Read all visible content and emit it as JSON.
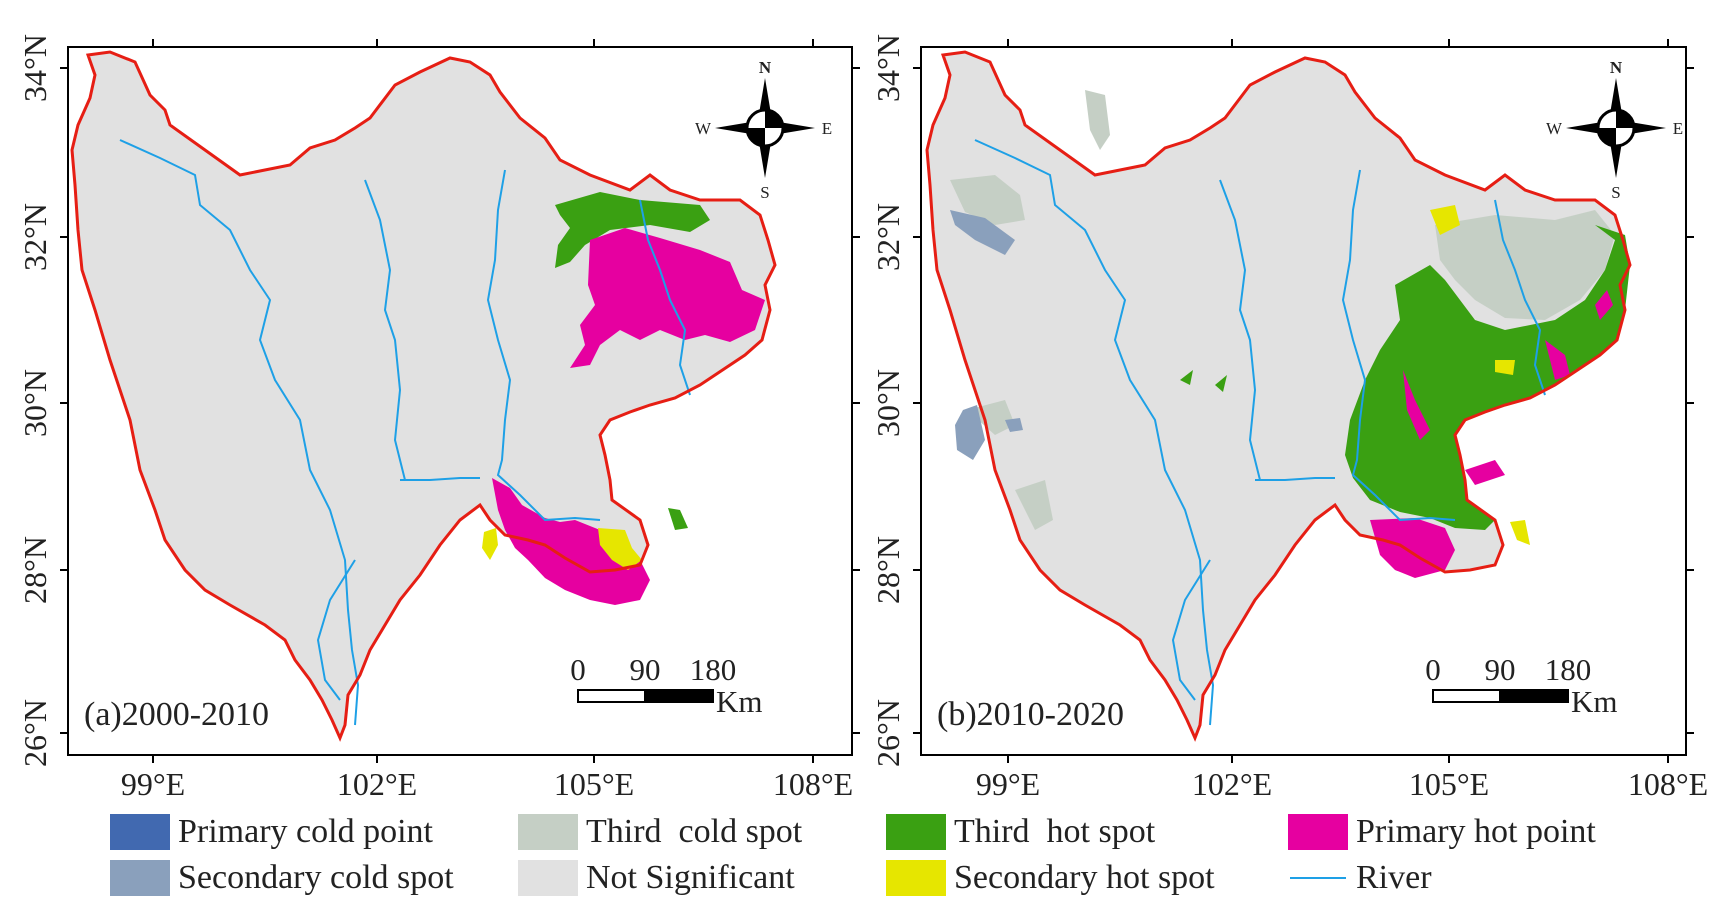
{
  "colors": {
    "primary_cold": "#4169b0",
    "secondary_cold": "#8aa0bc",
    "third_cold": "#c5cfc5",
    "not_significant": "#e1e1e1",
    "third_hot": "#3aa012",
    "secondary_hot": "#e6e600",
    "primary_hot": "#e600a0",
    "river": "#1ea0e6",
    "boundary": "#e61e14"
  },
  "axes": {
    "y_ticks": [
      "34°N",
      "32°N",
      "30°N",
      "28°N",
      "26°N"
    ],
    "x_ticks": [
      "99°E",
      "102°E",
      "105°E",
      "108°E"
    ]
  },
  "panels": [
    {
      "id": "a",
      "label": "(a)2000-2010"
    },
    {
      "id": "b",
      "label": "(b)2010-2020"
    }
  ],
  "scale_bar": {
    "values": [
      "0",
      "90",
      "180"
    ],
    "unit": "Km"
  },
  "compass": {
    "n": "N",
    "s": "S",
    "e": "E",
    "w": "W"
  },
  "legend": [
    {
      "label": "Primary cold point",
      "color": "#4169b0"
    },
    {
      "label": "Secondary cold spot",
      "color": "#8aa0bc"
    },
    {
      "label": "Third  cold spot",
      "color": "#c5cfc5"
    },
    {
      "label": "Not Significant",
      "color": "#e1e1e1"
    },
    {
      "label": "Third  hot spot",
      "color": "#3aa012"
    },
    {
      "label": "Secondary hot spot",
      "color": "#e6e600"
    },
    {
      "label": "Primary hot point",
      "color": "#e600a0"
    },
    {
      "label": "River",
      "color": "#1ea0e6"
    }
  ]
}
